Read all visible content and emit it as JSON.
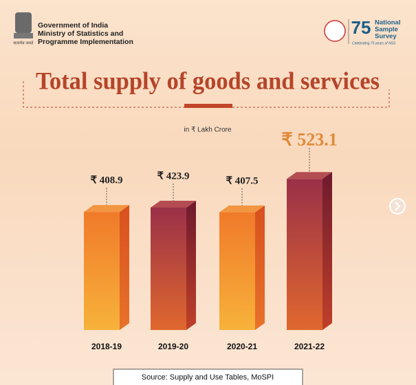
{
  "header": {
    "line1": "Government of India",
    "line2": "Ministry of Statistics and",
    "line3": "Programme Implementation",
    "emblem_motto": "सत्यमेव जयते"
  },
  "logo": {
    "number": "75",
    "name1": "National",
    "name2": "Sample",
    "name3": "Survey",
    "tagline": "Celebrating 75 years of NSS"
  },
  "chart_data": {
    "type": "bar3d",
    "title": "Total supply of goods and services",
    "subtitle": "in ₹ Lakh Crore",
    "categories": [
      "2018-19",
      "2019-20",
      "2020-21",
      "2021-22"
    ],
    "values": [
      408.9,
      423.9,
      407.5,
      523.1
    ],
    "value_labels": [
      "₹ 408.9",
      "₹ 423.9",
      "₹ 407.5",
      "₹ 523.1"
    ],
    "colors": [
      "#f08a2a",
      "#a8343e",
      "#f08a2a",
      "#a8343e"
    ]
  },
  "footer": {
    "source": "Source: Supply and Use Tables, MoSPI"
  }
}
